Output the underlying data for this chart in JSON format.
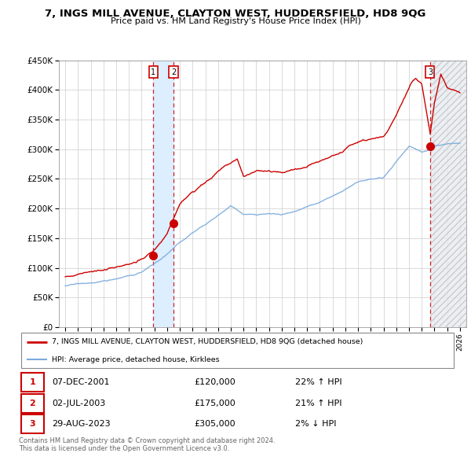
{
  "title": "7, INGS MILL AVENUE, CLAYTON WEST, HUDDERSFIELD, HD8 9QG",
  "subtitle": "Price paid vs. HM Land Registry's House Price Index (HPI)",
  "legend_line1": "7, INGS MILL AVENUE, CLAYTON WEST, HUDDERSFIELD, HD8 9QG (detached house)",
  "legend_line2": "HPI: Average price, detached house, Kirklees",
  "footer": "Contains HM Land Registry data © Crown copyright and database right 2024.\nThis data is licensed under the Open Government Licence v3.0.",
  "transactions": [
    {
      "num": 1,
      "date": "07-DEC-2001",
      "price": "£120,000",
      "hpi_txt": "22% ↑ HPI",
      "x": 2001.92,
      "price_y": 120000
    },
    {
      "num": 2,
      "date": "02-JUL-2003",
      "price": "£175,000",
      "hpi_txt": "21% ↑ HPI",
      "x": 2003.5,
      "price_y": 175000
    },
    {
      "num": 3,
      "date": "29-AUG-2023",
      "price": "£305,000",
      "hpi_txt": "2% ↓ HPI",
      "x": 2023.66,
      "price_y": 305000
    }
  ],
  "price_color": "#cc0000",
  "hpi_color": "#7aaadd",
  "shade_color": "#ddeeff",
  "ylim": [
    0,
    450000
  ],
  "xlim_left": 1994.5,
  "xlim_right": 2026.5,
  "yticks": [
    0,
    50000,
    100000,
    150000,
    200000,
    250000,
    300000,
    350000,
    400000,
    450000
  ],
  "xticks": [
    1995,
    1996,
    1997,
    1998,
    1999,
    2000,
    2001,
    2002,
    2003,
    2004,
    2005,
    2006,
    2007,
    2008,
    2009,
    2010,
    2011,
    2012,
    2013,
    2014,
    2015,
    2016,
    2017,
    2018,
    2019,
    2020,
    2021,
    2022,
    2023,
    2024,
    2025,
    2026
  ]
}
